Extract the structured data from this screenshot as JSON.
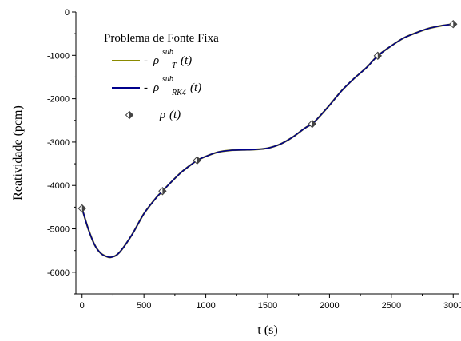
{
  "chart_data": {
    "type": "line",
    "xlabel": "t (s)",
    "ylabel": "Reatividade (pcm)",
    "xlim": [
      -50,
      3050
    ],
    "ylim": [
      -6500,
      0
    ],
    "xticks": [
      "0",
      "500",
      "1000",
      "1500",
      "2000",
      "2500",
      "3000"
    ],
    "yticks": [
      "0",
      "-1000",
      "-2000",
      "-3000",
      "-4000",
      "-5000",
      "-6000"
    ],
    "legend": {
      "title": "Problema de Fonte Fixa",
      "placement": "top-left",
      "entries": [
        {
          "dash": "-",
          "symbol": "ρ",
          "sup": "sub",
          "sub": "T",
          "arg": "(t)"
        },
        {
          "dash": "-",
          "symbol": "ρ",
          "sup": "sub",
          "sub": "RK4",
          "arg": "(t)"
        },
        {
          "dash": "",
          "symbol": "ρ",
          "sup": "",
          "sub": "",
          "arg": "(t)"
        }
      ]
    },
    "series": [
      {
        "style": "line",
        "color": "#8a8a00",
        "x": [
          0,
          50,
          100,
          150,
          200,
          240,
          300,
          400,
          500,
          600,
          650,
          700,
          800,
          900,
          930,
          1000,
          1100,
          1200,
          1300,
          1400,
          1500,
          1600,
          1700,
          1800,
          1860,
          1900,
          2000,
          2100,
          2200,
          2300,
          2390,
          2500,
          2600,
          2700,
          2800,
          2900,
          3000
        ],
        "y": [
          -4530,
          -5000,
          -5360,
          -5560,
          -5640,
          -5650,
          -5550,
          -5150,
          -4650,
          -4280,
          -4130,
          -3980,
          -3700,
          -3480,
          -3420,
          -3330,
          -3230,
          -3190,
          -3180,
          -3170,
          -3140,
          -3050,
          -2890,
          -2680,
          -2580,
          -2470,
          -2150,
          -1810,
          -1530,
          -1280,
          -1010,
          -780,
          -600,
          -480,
          -380,
          -320,
          -280
        ]
      },
      {
        "style": "line",
        "color": "#00008b",
        "x": [
          0,
          50,
          100,
          150,
          200,
          240,
          300,
          400,
          500,
          600,
          650,
          700,
          800,
          900,
          930,
          1000,
          1100,
          1200,
          1300,
          1400,
          1500,
          1600,
          1700,
          1800,
          1860,
          1900,
          2000,
          2100,
          2200,
          2300,
          2390,
          2500,
          2600,
          2700,
          2800,
          2900,
          3000
        ],
        "y": [
          -4530,
          -5000,
          -5360,
          -5560,
          -5640,
          -5650,
          -5550,
          -5150,
          -4650,
          -4280,
          -4130,
          -3980,
          -3700,
          -3480,
          -3420,
          -3330,
          -3230,
          -3190,
          -3180,
          -3170,
          -3140,
          -3050,
          -2890,
          -2680,
          -2580,
          -2470,
          -2150,
          -1810,
          -1530,
          -1280,
          -1010,
          -780,
          -600,
          -480,
          -380,
          -320,
          -280
        ]
      },
      {
        "style": "markers",
        "marker": "diamond",
        "color": "#444444",
        "x": [
          0,
          650,
          930,
          1860,
          2390,
          3000
        ],
        "y": [
          -4530,
          -4130,
          -3420,
          -2580,
          -1010,
          -280
        ]
      }
    ]
  }
}
